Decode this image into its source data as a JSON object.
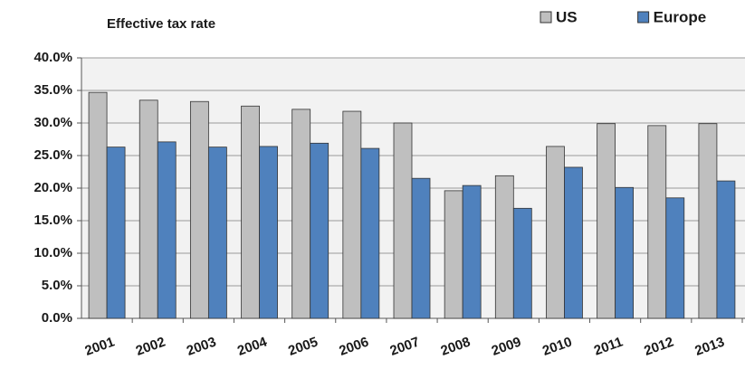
{
  "chart_data": {
    "type": "bar",
    "title": "Effective tax rate",
    "categories": [
      "2001",
      "2002",
      "2003",
      "2004",
      "2005",
      "2006",
      "2007",
      "2008",
      "2009",
      "2010",
      "2011",
      "2012",
      "2013"
    ],
    "series": [
      {
        "name": "US",
        "color": "#bfbfbf",
        "values": [
          34.7,
          33.5,
          33.3,
          32.6,
          32.1,
          31.8,
          30.0,
          19.6,
          21.9,
          26.4,
          29.9,
          29.6,
          29.9
        ]
      },
      {
        "name": "Europe",
        "color": "#4f81bd",
        "values": [
          26.3,
          27.1,
          26.3,
          26.4,
          26.9,
          26.1,
          21.5,
          20.4,
          16.9,
          23.2,
          20.1,
          18.5,
          21.1
        ]
      }
    ],
    "ylim": [
      0,
      40
    ],
    "yticks": [
      {
        "value": 0,
        "label": "0.0%"
      },
      {
        "value": 5,
        "label": "5.0%"
      },
      {
        "value": 10,
        "label": "10.0%"
      },
      {
        "value": 15,
        "label": "15.0%"
      },
      {
        "value": 20,
        "label": "20.0%"
      },
      {
        "value": 25,
        "label": "25.0%"
      },
      {
        "value": 30,
        "label": "30.0%"
      },
      {
        "value": 35,
        "label": "35.0%"
      },
      {
        "value": 40,
        "label": "40.0%"
      }
    ],
    "grid": true,
    "legend": "top-right"
  }
}
